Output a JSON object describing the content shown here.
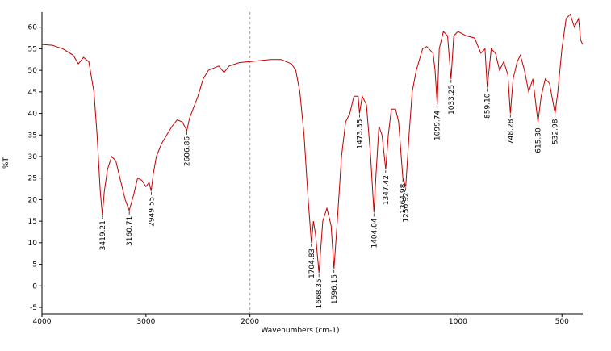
{
  "chart_data": {
    "type": "line",
    "xlabel": "Wavenumbers (cm-1)",
    "ylabel": "%T",
    "xlim": [
      4000,
      400
    ],
    "x_scale_break": 2000,
    "ylim": [
      -6.5,
      63.5
    ],
    "xticks": [
      4000,
      3000,
      2000,
      1000,
      500
    ],
    "yticks": [
      -5,
      0,
      5,
      10,
      15,
      20,
      25,
      30,
      35,
      40,
      45,
      50,
      55,
      60
    ],
    "series": [
      {
        "color": "#c00000",
        "x": [
          4000,
          3900,
          3800,
          3700,
          3650,
          3600,
          3550,
          3500,
          3470,
          3440,
          3419.21,
          3400,
          3370,
          3330,
          3290,
          3250,
          3200,
          3160.71,
          3120,
          3080,
          3040,
          3000,
          2970,
          2949.55,
          2930,
          2900,
          2850,
          2800,
          2750,
          2700,
          2650,
          2606.86,
          2580,
          2500,
          2450,
          2400,
          2300,
          2250,
          2200,
          2100,
          2000,
          1900,
          1850,
          1800,
          1780,
          1760,
          1740,
          1720,
          1704.83,
          1695,
          1685,
          1668.35,
          1650,
          1630,
          1610,
          1596.15,
          1580,
          1560,
          1540,
          1520,
          1500,
          1480,
          1473.35,
          1460,
          1440,
          1420,
          1404.04,
          1395,
          1380,
          1365,
          1347.42,
          1335,
          1320,
          1300,
          1285,
          1264.98,
          1250.92,
          1235,
          1220,
          1200,
          1170,
          1150,
          1120,
          1110,
          1099.74,
          1090,
          1070,
          1050,
          1033.25,
          1020,
          1000,
          960,
          920,
          890,
          870,
          859.1,
          840,
          820,
          800,
          780,
          760,
          748.28,
          735,
          715,
          700,
          680,
          660,
          640,
          615.3,
          600,
          580,
          560,
          532.98,
          520,
          500,
          480,
          460,
          440,
          420,
          410,
          400
        ],
        "values": [
          56,
          55.8,
          55,
          53.5,
          51.5,
          53,
          52,
          45,
          35,
          22,
          16.5,
          22,
          27,
          30,
          29,
          25,
          20,
          17.5,
          21,
          25,
          24.5,
          23,
          24,
          22,
          26,
          30,
          33,
          35,
          37,
          38.5,
          38,
          36,
          39,
          44,
          48,
          50,
          51,
          49.5,
          51,
          51.8,
          52,
          52.5,
          52.5,
          51.5,
          50,
          45,
          35,
          20,
          10,
          15,
          12,
          3,
          15,
          18,
          14,
          4,
          15,
          30,
          38,
          40,
          44,
          44,
          40,
          44,
          42,
          30,
          17,
          25,
          37,
          35,
          27,
          35,
          41,
          41,
          38,
          25,
          23,
          35,
          45,
          50,
          55,
          55.5,
          54,
          50,
          42,
          55,
          59,
          58,
          48,
          58,
          59,
          58,
          57.5,
          54,
          55,
          46,
          55,
          54,
          50,
          52,
          49,
          40,
          48,
          52,
          53.5,
          50,
          45,
          48,
          38,
          44,
          48,
          47,
          40,
          45,
          55,
          62,
          63,
          60,
          62,
          57,
          56
        ]
      }
    ],
    "annotations": [
      {
        "x": 3419.21,
        "y": 16.5
      },
      {
        "x": 3160.71,
        "y": 17.5
      },
      {
        "x": 2949.55,
        "y": 22
      },
      {
        "x": 2606.86,
        "y": 36
      },
      {
        "x": 1704.83,
        "y": 10
      },
      {
        "x": 1668.35,
        "y": 3
      },
      {
        "x": 1596.15,
        "y": 4
      },
      {
        "x": 1473.35,
        "y": 40
      },
      {
        "x": 1404.04,
        "y": 17
      },
      {
        "x": 1347.42,
        "y": 27
      },
      {
        "x": 1264.98,
        "y": 25
      },
      {
        "x": 1250.92,
        "y": 23
      },
      {
        "x": 1099.74,
        "y": 42
      },
      {
        "x": 1033.25,
        "y": 48
      },
      {
        "x": 859.1,
        "y": 46,
        "label": "859.10"
      },
      {
        "x": 748.28,
        "y": 40
      },
      {
        "x": 615.3,
        "y": 38,
        "label": "615.30"
      },
      {
        "x": 532.98,
        "y": 40
      }
    ]
  }
}
